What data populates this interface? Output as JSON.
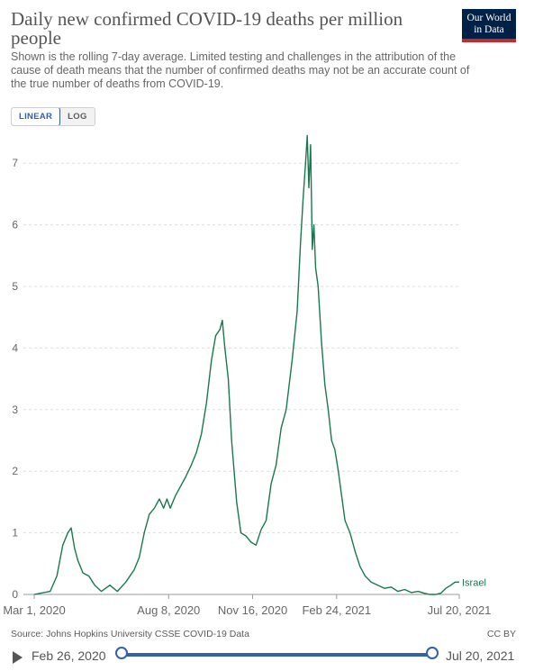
{
  "header": {
    "title": "Daily new confirmed COVID-19 deaths per million people",
    "subtitle": "Shown is the rolling 7-day average. Limited testing and challenges in the attribution of the cause of death means that the number of confirmed deaths may not be an accurate count of the true number of deaths from COVID-19.",
    "logo_line1": "Our World",
    "logo_line2": "in Data"
  },
  "controls": {
    "linear_label": "LINEAR",
    "log_label": "LOG",
    "active_scale": "LINEAR"
  },
  "footer": {
    "source": "Source: Johns Hopkins University CSSE COVID-19 Data",
    "license": "CC BY"
  },
  "timeline": {
    "start_label": "Feb 26, 2020",
    "end_label": "Jul 20, 2021"
  },
  "colors": {
    "series": "#18794e",
    "accent": "#3360a9",
    "logo_bg": "#002147",
    "logo_bar": "#c42b2b",
    "grid": "#dddddd"
  },
  "chart_data": {
    "type": "line",
    "title": "Daily new confirmed COVID-19 deaths per million people",
    "x_start": "2020-03-01",
    "x_end": "2021-07-20",
    "x_ticks": [
      {
        "date": "2020-03-01",
        "label": "Mar 1, 2020"
      },
      {
        "date": "2020-08-08",
        "label": "Aug 8, 2020"
      },
      {
        "date": "2020-11-16",
        "label": "Nov 16, 2020"
      },
      {
        "date": "2021-02-24",
        "label": "Feb 24, 2021"
      },
      {
        "date": "2021-07-20",
        "label": "Jul 20, 2021"
      }
    ],
    "ylim": [
      0,
      7.5
    ],
    "y_ticks": [
      0,
      1,
      2,
      3,
      4,
      5,
      6,
      7
    ],
    "grid": true,
    "series": [
      {
        "name": "Israel",
        "x": [
          "2020-03-01",
          "2020-03-20",
          "2020-03-28",
          "2020-04-04",
          "2020-04-10",
          "2020-04-14",
          "2020-04-18",
          "2020-04-22",
          "2020-04-28",
          "2020-05-05",
          "2020-05-12",
          "2020-05-20",
          "2020-05-30",
          "2020-06-08",
          "2020-06-18",
          "2020-06-28",
          "2020-07-04",
          "2020-07-10",
          "2020-07-16",
          "2020-07-22",
          "2020-07-28",
          "2020-08-02",
          "2020-08-06",
          "2020-08-10",
          "2020-08-16",
          "2020-08-22",
          "2020-08-28",
          "2020-09-04",
          "2020-09-10",
          "2020-09-16",
          "2020-09-22",
          "2020-09-28",
          "2020-10-03",
          "2020-10-08",
          "2020-10-11",
          "2020-10-14",
          "2020-10-18",
          "2020-10-22",
          "2020-10-28",
          "2020-11-02",
          "2020-11-08",
          "2020-11-14",
          "2020-11-20",
          "2020-11-26",
          "2020-12-02",
          "2020-12-08",
          "2020-12-14",
          "2020-12-20",
          "2020-12-26",
          "2021-01-02",
          "2021-01-08",
          "2021-01-12",
          "2021-01-15",
          "2021-01-18",
          "2021-01-20",
          "2021-01-22",
          "2021-01-24",
          "2021-01-26",
          "2021-01-28",
          "2021-01-30",
          "2021-02-02",
          "2021-02-06",
          "2021-02-10",
          "2021-02-14",
          "2021-02-18",
          "2021-02-22",
          "2021-02-26",
          "2021-03-02",
          "2021-03-06",
          "2021-03-12",
          "2021-03-18",
          "2021-03-24",
          "2021-03-30",
          "2021-04-06",
          "2021-04-14",
          "2021-04-22",
          "2021-04-30",
          "2021-05-08",
          "2021-05-16",
          "2021-05-24",
          "2021-06-01",
          "2021-06-08",
          "2021-06-15",
          "2021-06-22",
          "2021-06-28",
          "2021-07-04",
          "2021-07-10",
          "2021-07-15",
          "2021-07-20"
        ],
        "y": [
          0,
          0.05,
          0.3,
          0.8,
          1.0,
          1.08,
          0.75,
          0.55,
          0.35,
          0.3,
          0.15,
          0.05,
          0.15,
          0.05,
          0.2,
          0.4,
          0.6,
          1.0,
          1.3,
          1.4,
          1.55,
          1.4,
          1.55,
          1.4,
          1.6,
          1.75,
          1.9,
          2.1,
          2.3,
          2.6,
          3.1,
          3.8,
          4.2,
          4.3,
          4.45,
          4.0,
          3.5,
          2.5,
          1.5,
          1.0,
          0.95,
          0.85,
          0.8,
          1.05,
          1.2,
          1.8,
          2.1,
          2.7,
          3.0,
          3.8,
          4.6,
          5.7,
          6.4,
          7.0,
          7.45,
          6.6,
          7.3,
          5.6,
          6.0,
          5.3,
          5.0,
          4.1,
          3.4,
          3.0,
          2.5,
          2.35,
          2.0,
          1.6,
          1.2,
          1.0,
          0.7,
          0.45,
          0.3,
          0.2,
          0.15,
          0.1,
          0.12,
          0.05,
          0.08,
          0.03,
          0.05,
          0.02,
          0.0,
          0.0,
          0.02,
          0.1,
          0.15,
          0.2,
          0.2
        ]
      }
    ]
  }
}
